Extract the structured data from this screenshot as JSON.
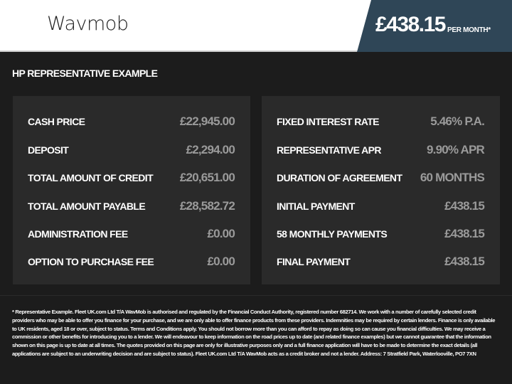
{
  "header": {
    "logo": "Wavmob",
    "price": "£438.15",
    "per_month": "PER MONTH*"
  },
  "section_title": "HP REPRESENTATIVE EXAMPLE",
  "left_rows": [
    {
      "label": "CASH PRICE",
      "value": "£22,945.00"
    },
    {
      "label": "DEPOSIT",
      "value": "£2,294.00"
    },
    {
      "label": "TOTAL AMOUNT OF CREDIT",
      "value": "£20,651.00"
    },
    {
      "label": "TOTAL AMOUNT PAYABLE",
      "value": "£28,582.72"
    },
    {
      "label": "ADMINISTRATION FEE",
      "value": "£0.00"
    },
    {
      "label": "OPTION TO PURCHASE FEE",
      "value": "£0.00"
    }
  ],
  "right_rows": [
    {
      "label": "FIXED INTEREST RATE",
      "value": "5.46% P.A."
    },
    {
      "label": "REPRESENTATIVE APR",
      "value": "9.90% APR"
    },
    {
      "label": "DURATION OF AGREEMENT",
      "value": "60 MONTHS"
    },
    {
      "label": "INITIAL PAYMENT",
      "value": "£438.15"
    },
    {
      "label": "58 MONTHLY PAYMENTS",
      "value": "£438.15"
    },
    {
      "label": "FINAL PAYMENT",
      "value": "£438.15"
    }
  ],
  "disclaimer": "* Representative Example. Fleet UK.com Ltd T/A WavMob is authorised and regulated by the Financial Conduct Authority, registered number 682714. We work with a number of carefully selected credit providers who may be able to offer you finance for your purchase, and we are only able to offer finance products from these providers. Indemnities may be required by certain lenders. Finance is only available to UK residents, aged 18 or over, subject to status. Terms and Conditions apply. You should not borrow more than you can afford to repay as doing so can cause you financial difficulties. We may receive a commission or other benefits for introducing you to a lender. We will endeavour to keep information on the road prices up to date (and related finance examples) but we cannot guarantee that the information shown on this page is up to date at all times. The quotes provided on this page are only for illustrative purposes only and a full finance application will have to be made to determine the exact details (all applications are subject to an underwriting decision and are subject to status). Fleet UK.com Ltd T/A WavMob acts as a credit broker and not a lender. Address: 7 Stratfield Park, Waterlooville, PO7 7XN",
  "colors": {
    "accent": "#2f4657",
    "background": "#1c1c1c",
    "card": "#2a2a2a"
  }
}
